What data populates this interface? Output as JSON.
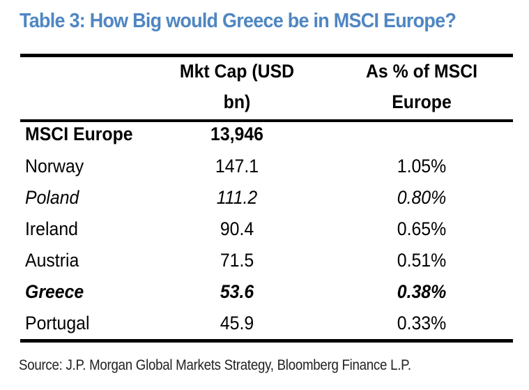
{
  "title": "Table 3: How Big would Greece be in MSCI Europe?",
  "colors": {
    "title": "#4f86c2",
    "text": "#000000"
  },
  "table": {
    "headers": {
      "col2_line1": "Mkt Cap (USD",
      "col2_line2": "bn)",
      "col3_line1": "As % of MSCI",
      "col3_line2": "Europe"
    },
    "rows": [
      {
        "name": "MSCI Europe",
        "mktcap": "13,946",
        "pct": "",
        "style": "bold"
      },
      {
        "name": "Norway",
        "mktcap": "147.1",
        "pct": "1.05%",
        "style": "normal"
      },
      {
        "name": "Poland",
        "mktcap": "111.2",
        "pct": "0.80%",
        "style": "italic"
      },
      {
        "name": "Ireland",
        "mktcap": "90.4",
        "pct": "0.65%",
        "style": "normal"
      },
      {
        "name": "Austria",
        "mktcap": "71.5",
        "pct": "0.51%",
        "style": "normal"
      },
      {
        "name": "Greece",
        "mktcap": "53.6",
        "pct": "0.38%",
        "style": "bold-italic"
      },
      {
        "name": "Portugal",
        "mktcap": "45.9",
        "pct": "0.33%",
        "style": "normal"
      }
    ]
  },
  "source": "Source: J.P. Morgan Global Markets Strategy, Bloomberg Finance L.P."
}
